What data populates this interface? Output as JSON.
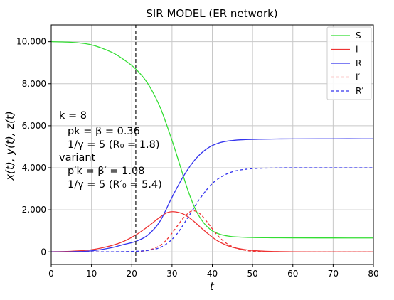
{
  "chart_data": {
    "type": "line",
    "title": "SIR MODEL (ER network)",
    "xlabel": "t",
    "ylabel": "x(t), y(t), z(t)",
    "xlim": [
      0,
      80
    ],
    "ylim": [
      -600,
      10800
    ],
    "xticks": [
      0,
      10,
      20,
      30,
      40,
      50,
      60,
      70,
      80
    ],
    "xtick_labels": [
      "0",
      "10",
      "20",
      "30",
      "40",
      "50",
      "60",
      "70",
      "80"
    ],
    "yticks": [
      0,
      2000,
      4000,
      6000,
      8000,
      10000
    ],
    "ytick_labels": [
      "0",
      "2,000",
      "4,000",
      "6,000",
      "8,000",
      "10,000"
    ],
    "grid": true,
    "legend_position": "top-right",
    "vline": {
      "x": 21,
      "style": "dashed",
      "color": "#333333"
    },
    "annotations": [
      {
        "id": "k",
        "text": "k = 8"
      },
      {
        "id": "pk",
        "text": "pk = β = 0.36"
      },
      {
        "id": "gamma",
        "text": "1/γ = 5 (R₀ = 1.8)"
      },
      {
        "id": "variant",
        "text": "variant"
      },
      {
        "id": "pk2",
        "text": "p′k = β′ = 1.08"
      },
      {
        "id": "gamma2",
        "text": "1/γ = 5  (R′₀ = 5.4)"
      }
    ],
    "series": [
      {
        "name": "S",
        "color": "#33dd33",
        "style": "solid",
        "x": [
          0,
          5,
          10,
          15,
          18,
          21,
          24,
          27,
          30,
          32,
          34,
          36,
          38,
          40,
          42,
          44,
          46,
          50,
          55,
          60,
          70,
          80
        ],
        "y": [
          10000,
          9970,
          9850,
          9500,
          9150,
          8700,
          8000,
          6900,
          5300,
          4100,
          2900,
          1950,
          1350,
          1000,
          830,
          750,
          710,
          680,
          670,
          665,
          662,
          660
        ]
      },
      {
        "name": "I",
        "color": "#ee3333",
        "style": "solid",
        "x": [
          0,
          5,
          10,
          15,
          18,
          21,
          24,
          27,
          29,
          31,
          33,
          35,
          37,
          39,
          41,
          43,
          45,
          48,
          52,
          56,
          60,
          70,
          80
        ],
        "y": [
          10,
          30,
          100,
          300,
          500,
          800,
          1200,
          1650,
          1880,
          1900,
          1780,
          1520,
          1180,
          850,
          560,
          360,
          220,
          110,
          40,
          15,
          5,
          0,
          0
        ]
      },
      {
        "name": "R",
        "color": "#3333ee",
        "style": "solid",
        "x": [
          0,
          5,
          10,
          15,
          18,
          21,
          24,
          27,
          30,
          33,
          36,
          39,
          42,
          45,
          48,
          52,
          56,
          60,
          70,
          80
        ],
        "y": [
          0,
          10,
          50,
          200,
          350,
          500,
          800,
          1450,
          2600,
          3650,
          4450,
          4950,
          5200,
          5300,
          5340,
          5360,
          5370,
          5375,
          5380,
          5380
        ]
      },
      {
        "name": "I′",
        "color": "#ee3333",
        "style": "dashed",
        "x": [
          0,
          10,
          20,
          24,
          27,
          29,
          31,
          33,
          35,
          37,
          39,
          41,
          43,
          45,
          48,
          52,
          60,
          70,
          80
        ],
        "y": [
          0,
          0,
          10,
          80,
          300,
          650,
          1150,
          1650,
          1950,
          1800,
          1350,
          850,
          480,
          250,
          80,
          15,
          0,
          0,
          0
        ]
      },
      {
        "name": "R′",
        "color": "#3333ee",
        "style": "dashed",
        "x": [
          0,
          10,
          20,
          25,
          28,
          31,
          34,
          37,
          40,
          43,
          46,
          50,
          55,
          60,
          70,
          80
        ],
        "y": [
          0,
          0,
          20,
          100,
          300,
          800,
          1650,
          2550,
          3250,
          3650,
          3860,
          3960,
          3990,
          4000,
          4000,
          4000
        ]
      }
    ]
  }
}
